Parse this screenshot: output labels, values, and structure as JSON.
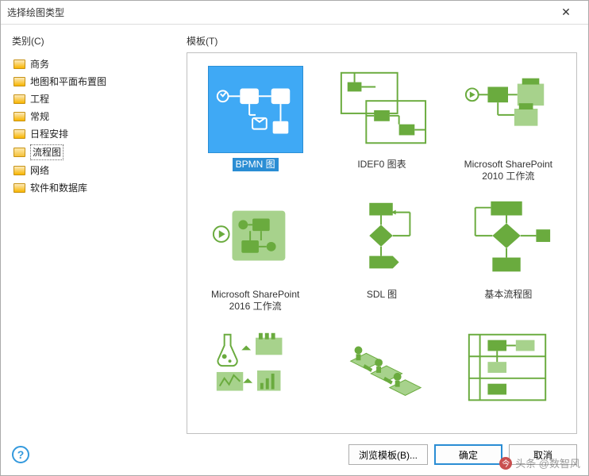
{
  "window": {
    "title": "选择绘图类型",
    "close_glyph": "✕"
  },
  "labels": {
    "category": "类别(C)",
    "template": "模板(T)"
  },
  "categories": [
    {
      "label": "商务",
      "selected": false
    },
    {
      "label": "地图和平面布置图",
      "selected": false
    },
    {
      "label": "工程",
      "selected": false
    },
    {
      "label": "常规",
      "selected": false
    },
    {
      "label": "日程安排",
      "selected": false
    },
    {
      "label": "流程图",
      "selected": true
    },
    {
      "label": "网络",
      "selected": false
    },
    {
      "label": "软件和数据库",
      "selected": false
    }
  ],
  "templates": [
    {
      "label": "BPMN 图",
      "selected": true,
      "thumb": "bpmn"
    },
    {
      "label": "IDEF0 图表",
      "selected": false,
      "thumb": "idef0"
    },
    {
      "label": "Microsoft SharePoint 2010 工作流",
      "selected": false,
      "thumb": "sp2010"
    },
    {
      "label": "Microsoft SharePoint 2016 工作流",
      "selected": false,
      "thumb": "sp2016"
    },
    {
      "label": "SDL 图",
      "selected": false,
      "thumb": "sdl"
    },
    {
      "label": "基本流程图",
      "selected": false,
      "thumb": "basic"
    },
    {
      "label": "",
      "selected": false,
      "thumb": "science"
    },
    {
      "label": "",
      "selected": false,
      "thumb": "iso"
    },
    {
      "label": "",
      "selected": false,
      "thumb": "swim"
    }
  ],
  "footer": {
    "browse": "浏览模板(B)...",
    "ok": "确定",
    "cancel": "取消",
    "help_glyph": "?"
  },
  "colors": {
    "accent": "#2a8dd4",
    "green": "#6aab3e",
    "green_light": "#a7d28c",
    "selected_thumb_bg": "#3fa9f5",
    "white": "#ffffff"
  },
  "watermark": "头条 @数智风"
}
